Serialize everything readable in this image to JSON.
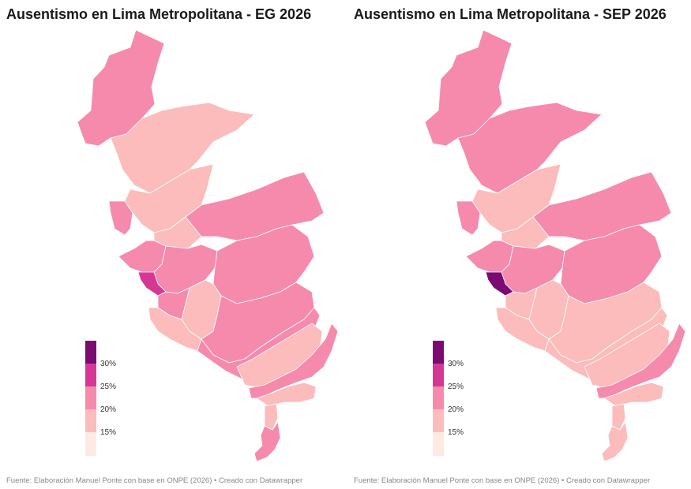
{
  "colors": {
    "lt15": "#fee9e3",
    "15to20": "#fbbcbb",
    "20to25": "#f58aad",
    "25to30": "#d63795",
    "gt30": "#7b0a72"
  },
  "legend": {
    "ticks": [
      "30%",
      "25%",
      "20%",
      "15%"
    ]
  },
  "maps": [
    {
      "title": "Ausentismo en Lima Metropolitana - EG 2026",
      "source": "Fuente: Elaboración Manuel Ponte con base en ONPE (2026) • Creado con Datawrapper",
      "regions": {
        "carabayllo_norte": "20to25",
        "ancon_sur": "20to25",
        "carabayllo": "15to20",
        "puente_piedra": "15to20",
        "ventanilla_costa": "20to25",
        "comas": "15to20",
        "lurigancho": "20to25",
        "callao": "20to25",
        "centro": "20to25",
        "lima_cercado": "25to30",
        "ate": "20to25",
        "chaclacayo": "15to20",
        "cieneguilla": "20to25",
        "surco": "20to25",
        "pachacamac": "20to25",
        "villa_salvador": "15to20",
        "lurin": "15to20",
        "punta_hermosa": "20to25",
        "punta_negra": "15to20",
        "san_bartolo": "15to20",
        "pucusana": "20to25"
      }
    },
    {
      "title": "Ausentismo en Lima Metropolitana - SEP 2026",
      "source": "Fuente: Elaboración Manuel Ponte con base en ONPE (2026) • Creado con Datawrapper",
      "regions": {
        "carabayllo_norte": "20to25",
        "ancon_sur": "20to25",
        "carabayllo": "20to25",
        "puente_piedra": "15to20",
        "ventanilla_costa": "20to25",
        "comas": "15to20",
        "lurigancho": "20to25",
        "callao": "20to25",
        "centro": "20to25",
        "lima_cercado": "gt30",
        "ate": "20to25",
        "chaclacayo": "15to20",
        "cieneguilla": "15to20",
        "surco": "15to20",
        "pachacamac": "15to20",
        "villa_salvador": "15to20",
        "lurin": "15to20",
        "punta_hermosa": "20to25",
        "punta_negra": "15to20",
        "san_bartolo": "15to20",
        "pucusana": "15to20"
      }
    }
  ]
}
